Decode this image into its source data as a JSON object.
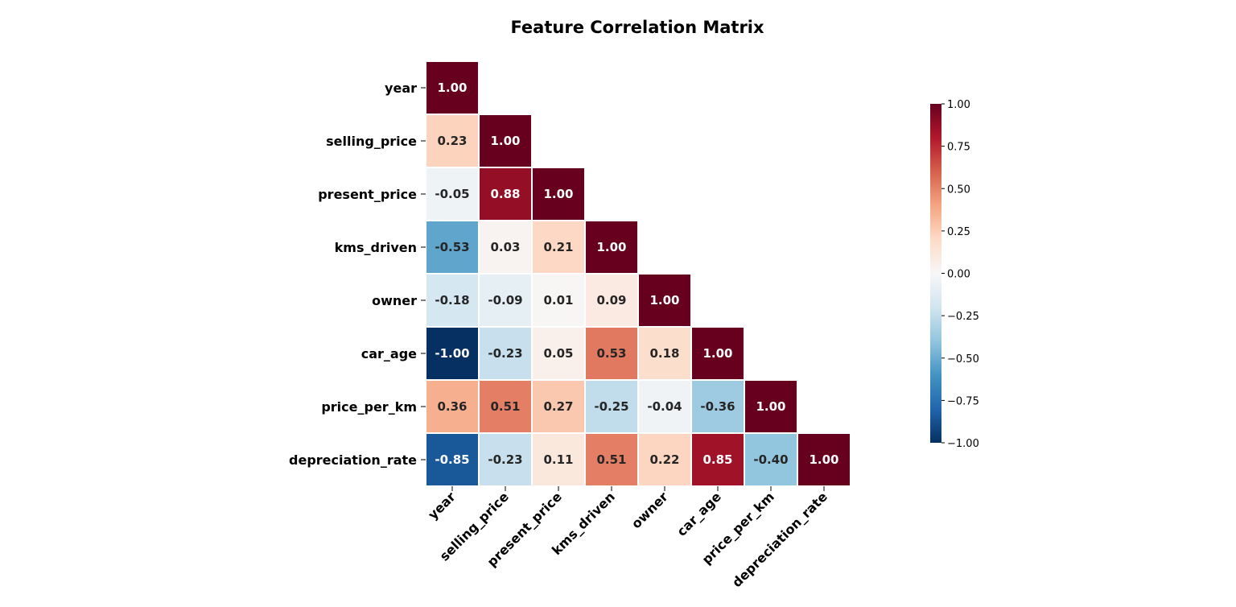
{
  "chart_data": {
    "type": "heatmap",
    "title": "Feature Correlation Matrix",
    "labels": [
      "year",
      "selling_price",
      "present_price",
      "kms_driven",
      "owner",
      "car_age",
      "price_per_km",
      "depreciation_rate"
    ],
    "mask": "lower-triangle",
    "values": [
      [
        1.0
      ],
      [
        0.23,
        1.0
      ],
      [
        -0.05,
        0.88,
        1.0
      ],
      [
        -0.53,
        0.03,
        0.21,
        1.0
      ],
      [
        -0.18,
        -0.09,
        0.01,
        0.09,
        1.0
      ],
      [
        -1.0,
        -0.23,
        0.05,
        0.53,
        0.18,
        1.0
      ],
      [
        0.36,
        0.51,
        0.27,
        -0.25,
        -0.04,
        -0.36,
        1.0
      ],
      [
        -0.85,
        -0.23,
        0.11,
        0.51,
        0.22,
        0.85,
        -0.4,
        1.0
      ]
    ],
    "colormap": "RdBu_r",
    "vmin": -1.0,
    "vmax": 1.0,
    "colorbar": {
      "ticks": [
        "1.00",
        "0.75",
        "0.50",
        "0.25",
        "0.00",
        "−0.25",
        "−0.50",
        "−0.75",
        "−1.00"
      ],
      "tick_values": [
        1.0,
        0.75,
        0.5,
        0.25,
        0.0,
        -0.25,
        -0.5,
        -0.75,
        -1.0
      ]
    },
    "grid": false,
    "legend": "right"
  }
}
